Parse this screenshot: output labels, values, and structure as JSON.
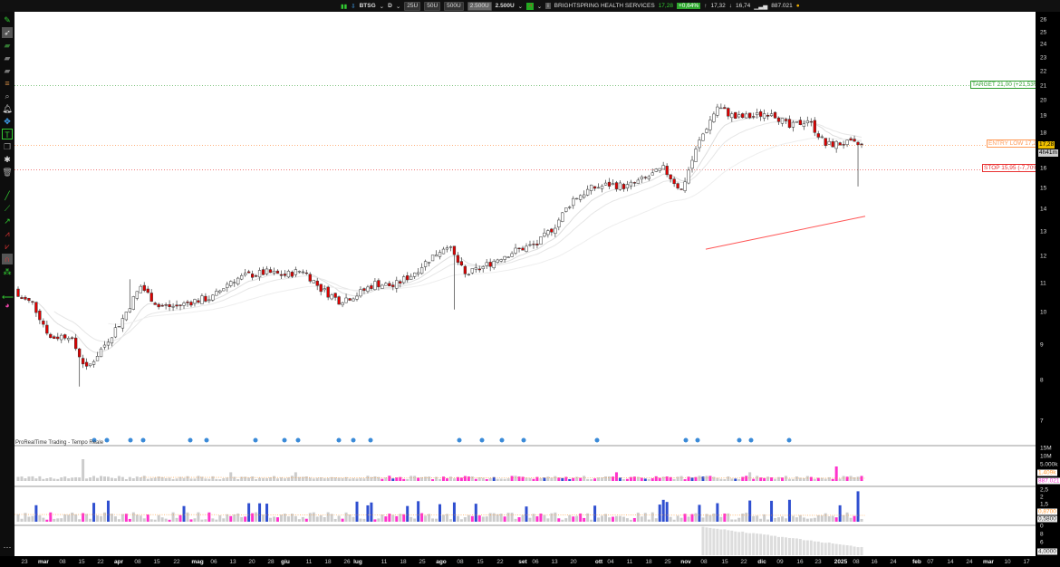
{
  "toolbar": {
    "symbol": "BTSG",
    "period": "D",
    "units": [
      "25U",
      "50U",
      "500U",
      "2.500U"
    ],
    "selected_units": "2.500U",
    "units_dropdown": "2.500U",
    "info_icon": "i",
    "company": "BRIGHTSPRING HEALTH SERVICES",
    "last": "17,28",
    "change": "+0,64%",
    "high_icon": "↑",
    "high": "17,32",
    "low_icon": "↓",
    "low": "16,74",
    "volume_icon": "bar-chart-icon",
    "volume": "887.021",
    "status_color": "#f0b000"
  },
  "colors": {
    "up_candle": "#ffffff",
    "down_candle": "#e00000",
    "target": "#2e9e2e",
    "entry": "#ff9955",
    "stop": "#e83030",
    "volume_up": "#2f4fd0",
    "volume_down": "#ff33cc",
    "volume_neutral": "#cccccc"
  },
  "annotations": {
    "target": "TARGET 21,00 (+21,53%)",
    "entry": "ENTRY LOW 17,28",
    "stop": "STOP 15,95 (-7,70%)",
    "price_tag": "17,28",
    "countdown": "4h41m"
  },
  "panel_label": "ProRealTime Trading - Tempo Reale",
  "price_axis": {
    "scale": "log",
    "ticks": [
      "26",
      "25",
      "24",
      "23",
      "22",
      "21",
      "20",
      "19",
      "18",
      "16",
      "15",
      "14",
      "13",
      "12",
      "11",
      "10",
      "9",
      "8",
      "7"
    ]
  },
  "volume_axis": {
    "ticks": [
      "15M",
      "10M",
      "5.000k"
    ],
    "ma_value": "1.409k",
    "last_value": "887.021"
  },
  "panel2_axis": {
    "ticks": [
      "2,5",
      "2",
      "1,5",
      "0"
    ],
    "value1": "0,8700",
    "value2": "0,5800"
  },
  "panel3_axis": {
    "ticks": [
      "8",
      "6"
    ],
    "value": "4,0000"
  },
  "time_axis": [
    "23",
    "mar",
    "08",
    "15",
    "22",
    "apr",
    "08",
    "15",
    "22",
    "mag",
    "06",
    "13",
    "20",
    "28",
    "giu",
    "11",
    "18",
    "26",
    "lug",
    "11",
    "18",
    "25",
    "ago",
    "08",
    "15",
    "22",
    "set",
    "06",
    "13",
    "20",
    "ott",
    "04",
    "11",
    "18",
    "25",
    "nov",
    "08",
    "15",
    "22",
    "dic",
    "09",
    "16",
    "23",
    "2025",
    "08",
    "16",
    "24",
    "feb",
    "07",
    "14",
    "24",
    "mar",
    "10",
    "17"
  ],
  "chart_data": {
    "type": "candlestick",
    "note_scale": "log",
    "series": [
      {
        "name": "BTSG",
        "weekly_close": [
          10.3,
          9.2,
          9.3,
          8.3,
          9.0,
          9.8,
          10.9,
          10.2,
          10.2,
          10.4,
          10.5,
          11.1,
          11.3,
          11.4,
          11.3,
          11.5,
          10.8,
          10.4,
          10.6,
          11.0,
          10.9,
          11.3,
          11.9,
          12.5,
          11.3,
          11.6,
          12.0,
          12.3,
          12.5,
          13.3,
          14.5,
          15.0,
          15.2,
          15.1,
          15.5,
          16.0,
          14.9,
          17.5,
          19.6,
          18.9,
          19.0,
          19.3,
          18.3,
          18.8,
          17.3,
          17.4,
          17.28
        ]
      }
    ],
    "ylim": [
      6.6,
      26.5
    ],
    "levels": {
      "target": 21.0,
      "entry": 17.28,
      "stop": 15.95
    }
  }
}
